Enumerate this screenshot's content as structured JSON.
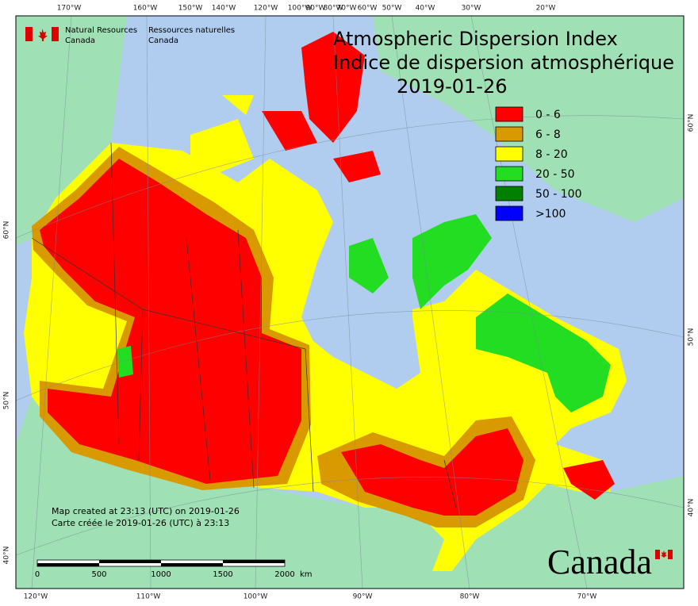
{
  "header": {
    "agency_en": [
      "Natural Resources",
      "Canada"
    ],
    "agency_fr": [
      "Ressources naturelles",
      "Canada"
    ]
  },
  "title": {
    "en": "Atmospheric Dispersion Index",
    "fr": "Indice de dispersion atmosphérique",
    "date": "2019-01-26"
  },
  "legend": [
    {
      "label": "0 - 6",
      "color": "#ff0000"
    },
    {
      "label": "6 - 8",
      "color": "#d99a00"
    },
    {
      "label": "8 - 20",
      "color": "#ffff00"
    },
    {
      "label": "20 - 50",
      "color": "#22dd22"
    },
    {
      "label": "50 - 100",
      "color": "#008000"
    },
    {
      "label": ">100",
      "color": "#0000ff"
    }
  ],
  "graticule": {
    "top": [
      "170°W",
      "160°W",
      "150°W",
      "140°W",
      "120°W",
      "100°W",
      "90°W",
      "80°W",
      "70°W",
      "60°W",
      "50°W",
      "40°W",
      "30°W",
      "20°W"
    ],
    "bottom": [
      "120°W",
      "110°W",
      "100°W",
      "90°W",
      "80°W",
      "70°W"
    ],
    "left": [
      "60°N",
      "50°N",
      "40°N"
    ],
    "right": [
      "60°N",
      "50°N",
      "40°N"
    ]
  },
  "notes": [
    "Map created at 23:13 (UTC) on 2019-01-26",
    "Carte créée le 2019-01-26 (UTC) à 23:13"
  ],
  "scale_bar": {
    "labels": [
      "0",
      "500",
      "1000",
      "1500",
      "2000"
    ],
    "unit": "km"
  },
  "wordmark": "Canada"
}
